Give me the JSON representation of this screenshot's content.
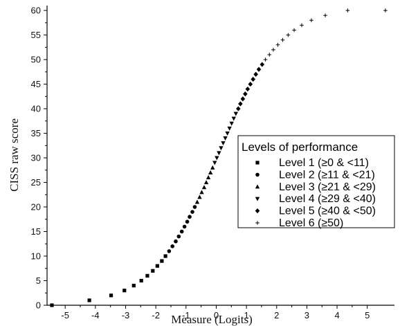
{
  "chart_data": {
    "type": "scatter",
    "title": "",
    "xlabel": "Measure (Logits)",
    "ylabel": "CISS raw score",
    "xlim": [
      -5.6,
      5.9
    ],
    "ylim": [
      0,
      61
    ],
    "xticks": [
      -5,
      -4,
      -3,
      -2,
      -1,
      0,
      1,
      2,
      3,
      4,
      5
    ],
    "yticks": [
      0,
      5,
      10,
      15,
      20,
      25,
      30,
      35,
      40,
      45,
      50,
      55,
      60
    ],
    "grid": false,
    "legend_title": "Levels of performance",
    "legend_placement": "right",
    "series": [
      {
        "name": "Level 1 (≥0 & <11)",
        "marker": "square",
        "points": [
          [
            -5.44,
            0
          ],
          [
            -4.2,
            1
          ],
          [
            -3.48,
            2
          ],
          [
            -3.04,
            3
          ],
          [
            -2.73,
            4
          ],
          [
            -2.48,
            5
          ],
          [
            -2.28,
            6
          ],
          [
            -2.1,
            7
          ],
          [
            -1.95,
            8
          ],
          [
            -1.8,
            9
          ],
          [
            -1.68,
            10
          ]
        ]
      },
      {
        "name": "Level 2 (≥11 & <21)",
        "marker": "circle",
        "points": [
          [
            -1.56,
            11
          ],
          [
            -1.45,
            12
          ],
          [
            -1.34,
            13
          ],
          [
            -1.24,
            14
          ],
          [
            -1.14,
            15
          ],
          [
            -1.05,
            16
          ],
          [
            -0.96,
            17
          ],
          [
            -0.88,
            18
          ],
          [
            -0.79,
            19
          ],
          [
            -0.71,
            20
          ]
        ]
      },
      {
        "name": "Level 3 (≥21 & <29)",
        "marker": "triangle-up",
        "points": [
          [
            -0.63,
            21
          ],
          [
            -0.55,
            22
          ],
          [
            -0.48,
            23
          ],
          [
            -0.4,
            24
          ],
          [
            -0.33,
            25
          ],
          [
            -0.26,
            26
          ],
          [
            -0.19,
            27
          ],
          [
            -0.12,
            28
          ]
        ]
      },
      {
        "name": "Level 4 (≥29 & <40)",
        "marker": "triangle-down",
        "points": [
          [
            -0.05,
            29
          ],
          [
            0.02,
            30
          ],
          [
            0.09,
            31
          ],
          [
            0.16,
            32
          ],
          [
            0.23,
            33
          ],
          [
            0.3,
            34
          ],
          [
            0.37,
            35
          ],
          [
            0.44,
            36
          ],
          [
            0.51,
            37
          ],
          [
            0.58,
            38
          ],
          [
            0.65,
            39
          ]
        ]
      },
      {
        "name": "Level 5 (≥40 & <50)",
        "marker": "diamond",
        "points": [
          [
            0.73,
            40
          ],
          [
            0.8,
            41
          ],
          [
            0.88,
            42
          ],
          [
            0.96,
            43
          ],
          [
            1.04,
            44
          ],
          [
            1.13,
            45
          ],
          [
            1.22,
            46
          ],
          [
            1.31,
            47
          ],
          [
            1.41,
            48
          ],
          [
            1.52,
            49
          ]
        ]
      },
      {
        "name": "Level 6 (≥50)",
        "marker": "plus",
        "points": [
          [
            1.63,
            50
          ],
          [
            1.76,
            51
          ],
          [
            1.89,
            52
          ],
          [
            2.04,
            53
          ],
          [
            2.2,
            54
          ],
          [
            2.38,
            55
          ],
          [
            2.58,
            56
          ],
          [
            2.83,
            57
          ],
          [
            3.15,
            58
          ],
          [
            3.61,
            59
          ],
          [
            4.35,
            60
          ],
          [
            5.6,
            60
          ]
        ]
      }
    ]
  }
}
